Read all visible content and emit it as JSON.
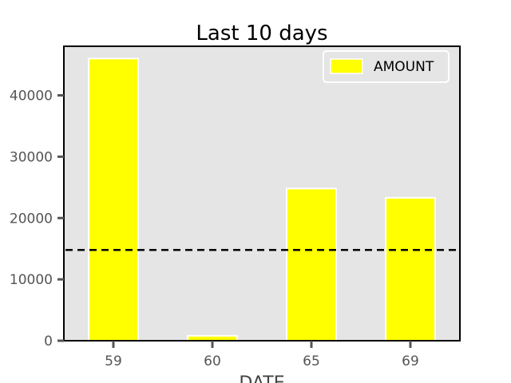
{
  "chart_data": {
    "type": "bar",
    "title": "Last 10 days",
    "xlabel": "DATE",
    "ylabel": "",
    "categories": [
      "59",
      "60",
      "65",
      "69"
    ],
    "series": [
      {
        "name": "AMOUNT",
        "values": [
          46000,
          800,
          24800,
          23300
        ],
        "color": "#ffff00"
      }
    ],
    "reference_line": {
      "value": 14800,
      "style": "dashed",
      "color": "#000000"
    },
    "yticks": [
      0,
      10000,
      20000,
      30000,
      40000
    ],
    "ylim": [
      0,
      48000
    ],
    "grid": false,
    "legend_position": "top-right",
    "background_color": "#e5e5e5"
  }
}
